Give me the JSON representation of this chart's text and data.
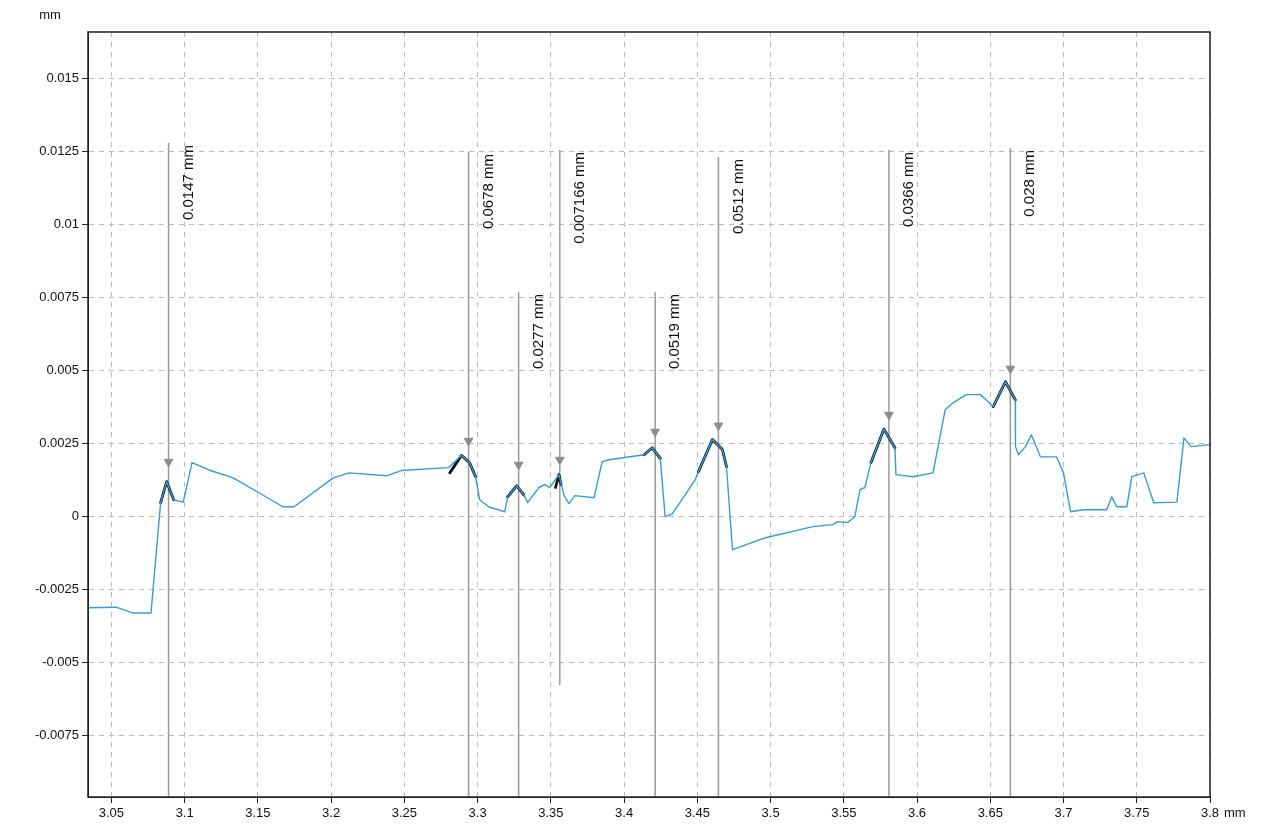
{
  "chart_data": {
    "type": "line",
    "xlabel": "mm",
    "ylabel": "mm",
    "xlim": [
      3.034,
      3.8
    ],
    "ylim": [
      -0.0096,
      0.0166
    ],
    "xticks": [
      {
        "value": 3.05,
        "label": "3.05"
      },
      {
        "value": 3.1,
        "label": "3.1"
      },
      {
        "value": 3.15,
        "label": "3.15"
      },
      {
        "value": 3.2,
        "label": "3.2"
      },
      {
        "value": 3.25,
        "label": "3.25"
      },
      {
        "value": 3.3,
        "label": "3.3"
      },
      {
        "value": 3.35,
        "label": "3.35"
      },
      {
        "value": 3.4,
        "label": "3.4"
      },
      {
        "value": 3.45,
        "label": "3.45"
      },
      {
        "value": 3.5,
        "label": "3.5"
      },
      {
        "value": 3.55,
        "label": "3.55"
      },
      {
        "value": 3.6,
        "label": "3.6"
      },
      {
        "value": 3.65,
        "label": "3.65"
      },
      {
        "value": 3.7,
        "label": "3.7"
      },
      {
        "value": 3.75,
        "label": "3.75"
      },
      {
        "value": 3.8,
        "label": "3.8"
      }
    ],
    "yticks": [
      {
        "value": -0.0075,
        "label": "-0.0075"
      },
      {
        "value": -0.005,
        "label": "-0.005"
      },
      {
        "value": -0.0025,
        "label": "-0.0025"
      },
      0,
      {
        "value": 0.0025,
        "label": "0.0025"
      },
      {
        "value": 0.005,
        "label": "0.005"
      },
      {
        "value": 0.0075,
        "label": "0.0075"
      },
      {
        "value": 0.01,
        "label": "0.01"
      },
      {
        "value": 0.0125,
        "label": "0.0125"
      },
      {
        "value": 0.015,
        "label": "0.015"
      }
    ],
    "grid": true,
    "legend": false,
    "marker": "none",
    "line_style": "solid",
    "series": [
      {
        "color": "#3a9bd0",
        "x": [
          3.034,
          3.053,
          3.065,
          3.077,
          3.0836,
          3.0877,
          3.0925,
          3.099,
          3.105,
          3.1166,
          3.133,
          3.1507,
          3.167,
          3.1747,
          3.2014,
          3.2123,
          3.2377,
          3.248,
          3.28,
          3.289,
          3.2945,
          3.2986,
          3.3014,
          3.3075,
          3.3185,
          3.3205,
          3.3267,
          3.3315,
          3.3342,
          3.3418,
          3.3459,
          3.3493,
          3.3555,
          3.3589,
          3.3623,
          3.3664,
          3.3795,
          3.385,
          3.3897,
          3.4137,
          3.4192,
          3.4247,
          3.428,
          3.4329,
          3.4397,
          3.4486,
          3.4507,
          3.4603,
          3.4671,
          3.4699,
          3.474,
          3.4966,
          3.5288,
          3.5425,
          3.5459,
          3.5527,
          3.5575,
          3.561,
          3.5644,
          3.5685,
          3.5774,
          3.5849,
          3.5856,
          3.5973,
          3.6109,
          3.6192,
          3.6246,
          3.6336,
          3.6432,
          3.6486,
          3.652,
          3.6603,
          3.6671,
          3.6672,
          3.6692,
          3.674,
          3.6781,
          3.6842,
          3.6952,
          3.7,
          3.7048,
          3.7137,
          3.7295,
          3.7329,
          3.7363,
          3.7432,
          3.7466,
          3.7548,
          3.7616,
          3.7774,
          3.7822,
          3.787,
          3.8
        ],
        "values": [
          -0.00312,
          -0.0031,
          -0.0033,
          -0.0033,
          0.00048,
          0.0012,
          0.00058,
          0.0005,
          0.00185,
          0.0016,
          0.00133,
          0.00082,
          0.00034,
          0.00034,
          0.00133,
          0.0015,
          0.0014,
          0.00158,
          0.00168,
          0.0021,
          0.00185,
          0.00137,
          0.00058,
          0.00034,
          0.00017,
          0.00068,
          0.00106,
          0.00075,
          0.00048,
          0.001,
          0.0011,
          0.001,
          0.00144,
          0.00075,
          0.00045,
          0.00072,
          0.00065,
          0.00188,
          0.00195,
          0.00212,
          0.00236,
          0.002,
          0.0,
          0.0001,
          0.0006,
          0.00127,
          0.00154,
          0.00264,
          0.0023,
          0.00171,
          -0.00113,
          -0.00072,
          -0.00034,
          -0.00027,
          -0.00017,
          -0.0002,
          0.0,
          0.00092,
          0.001,
          0.00185,
          0.003,
          0.00236,
          0.00144,
          0.00137,
          0.0015,
          0.00366,
          0.0039,
          0.00418,
          0.00418,
          0.00394,
          0.00377,
          0.00462,
          0.004,
          0.0024,
          0.00212,
          0.0024,
          0.0028,
          0.00205,
          0.00205,
          0.0015,
          0.00017,
          0.00024,
          0.00024,
          0.00068,
          0.00034,
          0.00034,
          0.00137,
          0.0015,
          0.00048,
          0.0005,
          0.0027,
          0.0024,
          0.00247
        ]
      },
      {
        "color": "#111111",
        "x": [
          3.0836,
          3.0877,
          3.0925,
          3.2,
          3.281,
          3.289,
          3.2945,
          3.2986,
          3.31,
          3.3205,
          3.3267,
          3.3315,
          3.34,
          3.3532,
          3.3555,
          3.357,
          3.38,
          3.4137,
          3.4192,
          3.4247,
          3.44,
          3.4507,
          3.4603,
          3.4671,
          3.4699,
          3.52,
          3.5685,
          3.5774,
          3.5849,
          3.62,
          3.652,
          3.6603,
          3.6671
        ],
        "values": [
          0.00048,
          0.0012,
          0.00058,
          null,
          0.0015,
          0.0021,
          0.00185,
          0.00137,
          null,
          0.00068,
          0.00106,
          0.00075,
          null,
          0.001,
          0.00144,
          0.0011,
          null,
          0.00212,
          0.00236,
          0.002,
          null,
          0.00154,
          0.00264,
          0.0023,
          0.00171,
          null,
          0.00185,
          0.003,
          0.00236,
          null,
          0.00377,
          0.00462,
          0.004
        ]
      },
      {
        "type": "scatter",
        "color": "#8c8c8c",
        "marker": "triangle",
        "x": [
          3.089,
          3.2938,
          3.328,
          3.3561,
          3.4212,
          3.4644,
          3.5808,
          3.6637
        ],
        "values": [
          0.00188,
          0.0026,
          0.00178,
          0.00195,
          0.00291,
          0.00312,
          0.00349,
          0.00507
        ]
      }
    ],
    "ref_lines": [
      {
        "axis": "x",
        "value": 3.089,
        "label": "0.0147 mm",
        "color": "#9a9a9a"
      },
      {
        "axis": "x",
        "value": 3.2938,
        "label": "0.0678 mm",
        "color": "#9a9a9a"
      },
      {
        "axis": "x",
        "value": 3.328,
        "label": "0.0277 mm",
        "color": "#9a9a9a"
      },
      {
        "axis": "x",
        "value": 3.3561,
        "label": "0.007166 mm",
        "color": "#9a9a9a"
      },
      {
        "axis": "x",
        "value": 3.4212,
        "label": "0.0519 mm",
        "color": "#9a9a9a"
      },
      {
        "axis": "x",
        "value": 3.4644,
        "label": "0.0512 mm",
        "color": "#9a9a9a"
      },
      {
        "axis": "x",
        "value": 3.5808,
        "label": "0.0366 mm",
        "color": "#9a9a9a"
      },
      {
        "axis": "x",
        "value": 3.6637,
        "label": "0.028 mm",
        "color": "#9a9a9a"
      }
    ]
  }
}
